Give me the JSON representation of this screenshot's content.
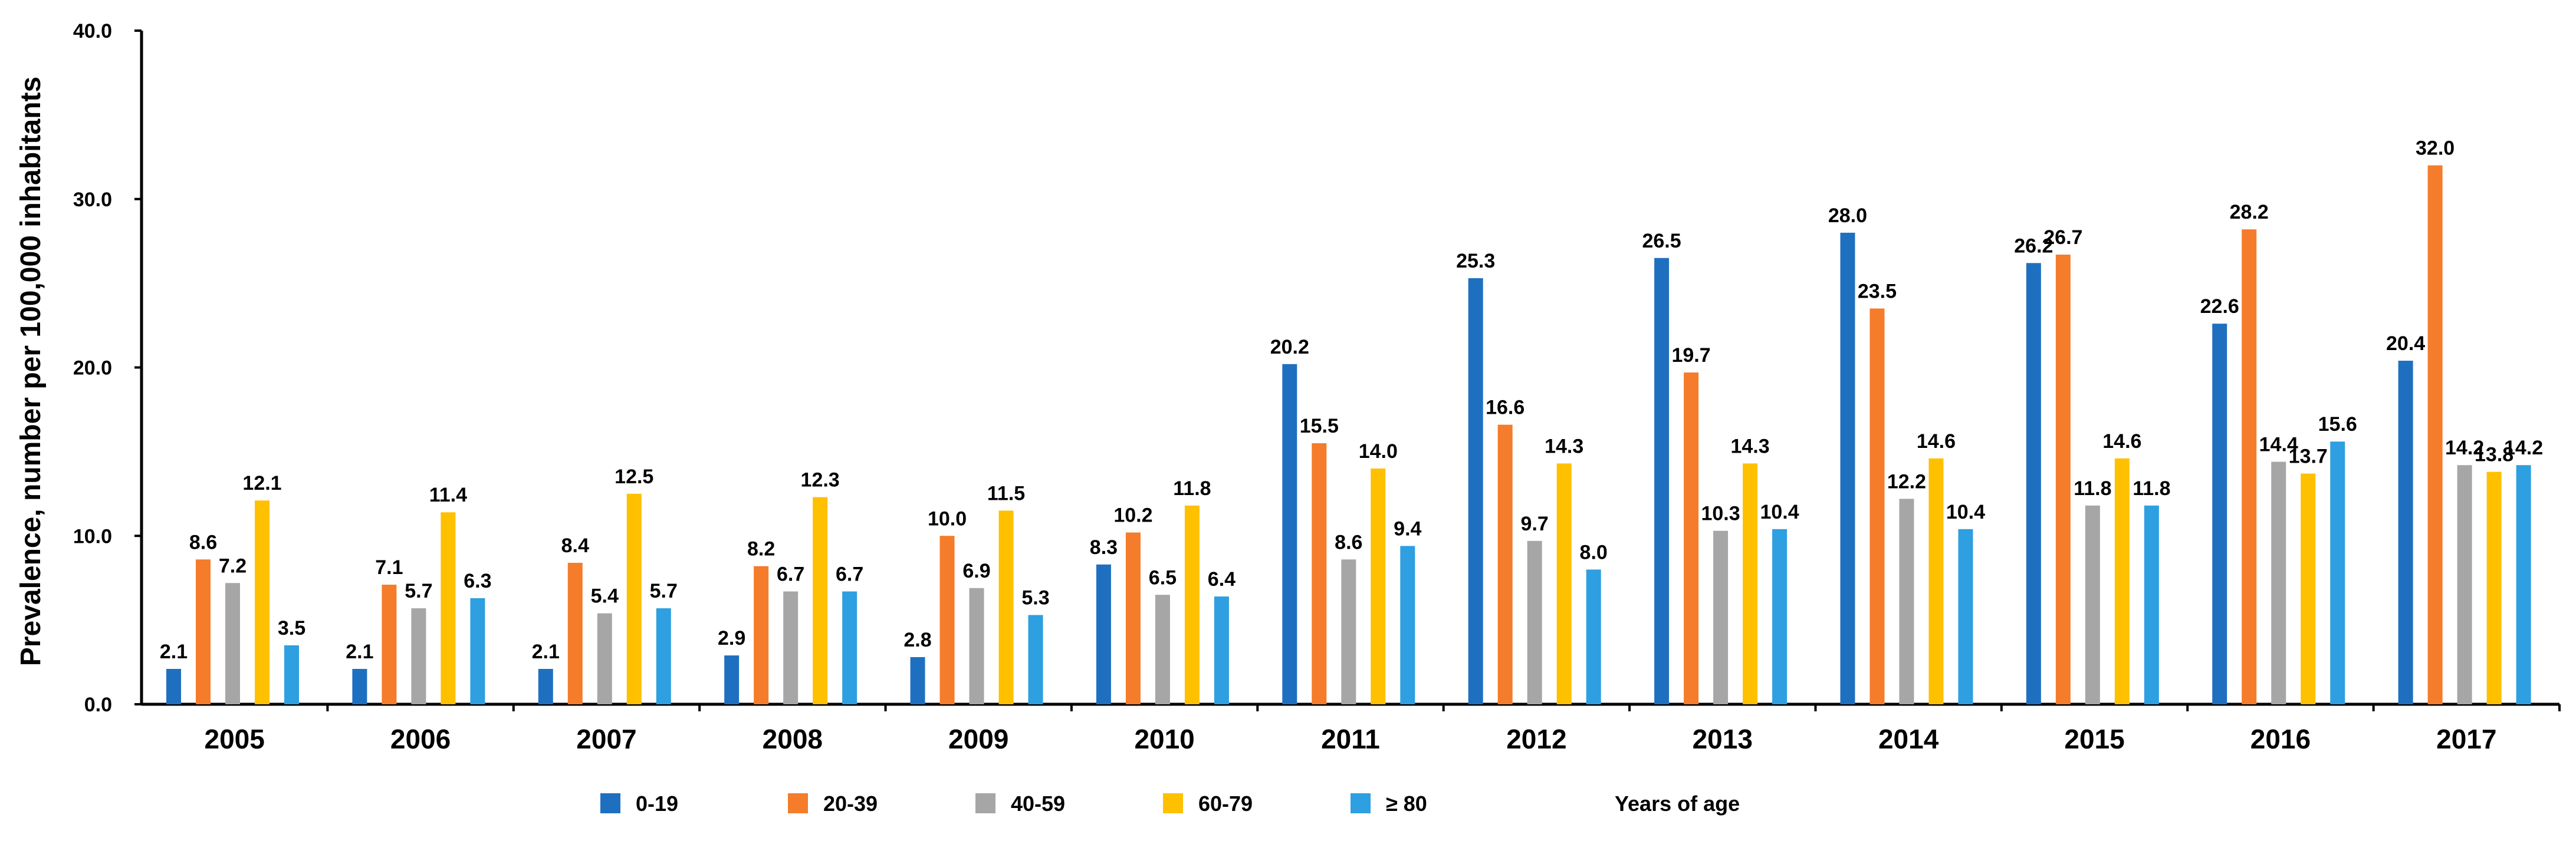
{
  "chart_data": {
    "type": "bar",
    "title": "",
    "xlabel": "",
    "ylabel": "Prevalence, number per 100,000 inhabitants",
    "ylim": [
      0,
      40
    ],
    "yticks": [
      "0.0",
      "10.0",
      "20.0",
      "30.0",
      "40.0"
    ],
    "categories": [
      "2005",
      "2006",
      "2007",
      "2008",
      "2009",
      "2010",
      "2011",
      "2012",
      "2013",
      "2014",
      "2015",
      "2016",
      "2017"
    ],
    "series": [
      {
        "name": "0-19",
        "color": "#1F6FC0",
        "values": [
          2.1,
          2.1,
          2.1,
          2.9,
          2.8,
          8.3,
          20.2,
          25.3,
          26.5,
          28.0,
          26.2,
          22.6,
          20.4
        ]
      },
      {
        "name": "20-39",
        "color": "#F47C2A",
        "values": [
          8.6,
          7.1,
          8.4,
          8.2,
          10.0,
          10.2,
          15.5,
          16.6,
          19.7,
          23.5,
          26.7,
          28.2,
          32.0
        ]
      },
      {
        "name": "40-59",
        "color": "#A6A6A6",
        "values": [
          7.2,
          5.7,
          5.4,
          6.7,
          6.9,
          6.5,
          8.6,
          9.7,
          10.3,
          12.2,
          11.8,
          14.4,
          14.2
        ]
      },
      {
        "name": "60-79",
        "color": "#FFC000",
        "values": [
          12.1,
          11.4,
          12.5,
          12.3,
          11.5,
          11.8,
          14.0,
          14.3,
          14.3,
          14.6,
          14.6,
          13.7,
          13.8
        ]
      },
      {
        "name": "≥ 80",
        "color": "#2E9FE0",
        "values": [
          3.5,
          6.3,
          5.7,
          6.7,
          5.3,
          6.4,
          9.4,
          8.0,
          10.4,
          10.4,
          11.8,
          15.6,
          14.2
        ]
      }
    ],
    "legend_suffix": "Years of age",
    "legend_position": "bottom",
    "grid": false
  }
}
